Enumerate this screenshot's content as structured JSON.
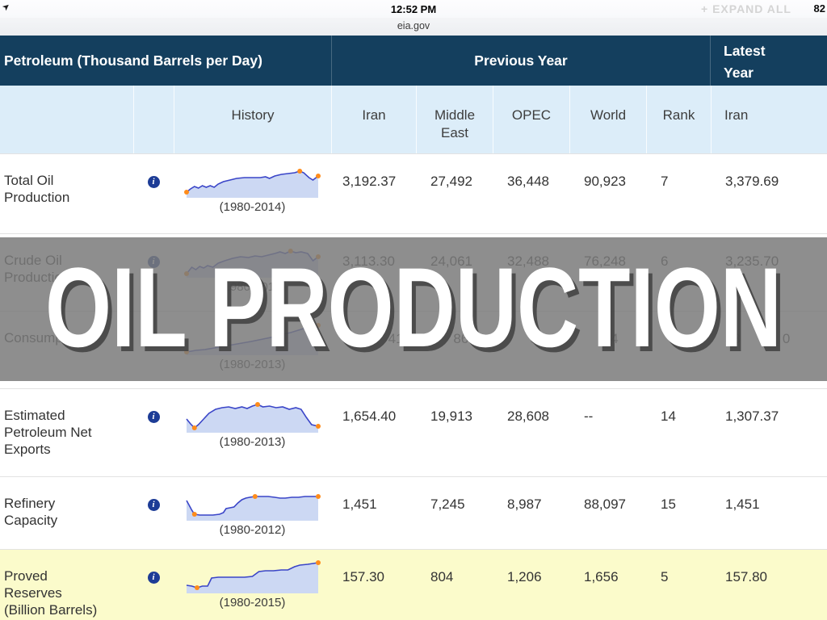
{
  "status_bar": {
    "time": "12:52 PM",
    "site": "eia.gov",
    "battery": "82",
    "expand_all_label": "+ EXPAND ALL"
  },
  "overlay": {
    "title": "OIL PRODUCTION"
  },
  "icons": {
    "info_glyph": "i",
    "signal_glyph": "➤"
  },
  "colors": {
    "header_navy": "#143F5E",
    "subheader_blue": "#DCEDF9",
    "highlight_yellow": "#FBFBCB",
    "spark_line": "#3A45C8",
    "spark_fill": "#CCD8F3",
    "spark_marker": "#FF8C1A",
    "info_icon_blue": "#1D3C96",
    "overlay_gray": "rgba(122,122,122,0.85)"
  },
  "table": {
    "group_headers": {
      "left": "Petroleum (Thousand Barrels per Day)",
      "middle": "Previous Year",
      "right": "Latest\nYear"
    },
    "columns": {
      "history": "History",
      "iran": "Iran",
      "middle_east": "Middle\nEast",
      "opec": "OPEC",
      "world": "World",
      "rank": "Rank",
      "latest_iran": "Iran"
    },
    "rows": [
      {
        "label": "Total Oil\nProduction",
        "caption": "(1980-2014)",
        "iran": "3,192.37",
        "middle_east": "27,492",
        "opec": "36,448",
        "world": "90,923",
        "rank": "7",
        "latest": "3,379.69",
        "spark": {
          "points": [
            [
              0,
              33
            ],
            [
              3,
              29
            ],
            [
              6,
              26
            ],
            [
              9,
              28
            ],
            [
              12,
              25
            ],
            [
              15,
              27
            ],
            [
              18,
              25
            ],
            [
              21,
              27
            ],
            [
              24,
              23
            ],
            [
              28,
              20
            ],
            [
              33,
              18
            ],
            [
              38,
              16
            ],
            [
              44,
              15
            ],
            [
              50,
              15
            ],
            [
              56,
              15
            ],
            [
              60,
              14
            ],
            [
              63,
              16
            ],
            [
              67,
              13
            ],
            [
              72,
              11
            ],
            [
              77,
              10
            ],
            [
              82,
              9
            ],
            [
              86,
              7
            ],
            [
              89,
              9
            ],
            [
              93,
              15
            ],
            [
              96,
              18
            ],
            [
              100,
              13
            ]
          ],
          "markers": [
            0,
            21,
            25
          ]
        }
      },
      {
        "label": "Crude Oil\nProduction",
        "caption": "(1980-2014)",
        "iran": "3,113.30",
        "middle_east": "24,061",
        "opec": "32,488",
        "world": "76,248",
        "rank": "6",
        "latest": "3,235.70",
        "spark": {
          "points": [
            [
              0,
              35
            ],
            [
              4,
              27
            ],
            [
              7,
              30
            ],
            [
              10,
              26
            ],
            [
              13,
              28
            ],
            [
              16,
              25
            ],
            [
              20,
              27
            ],
            [
              24,
              22
            ],
            [
              29,
              19
            ],
            [
              35,
              16
            ],
            [
              41,
              14
            ],
            [
              47,
              15
            ],
            [
              52,
              13
            ],
            [
              57,
              14
            ],
            [
              62,
              12
            ],
            [
              67,
              10
            ],
            [
              71,
              8
            ],
            [
              75,
              10
            ],
            [
              79,
              7
            ],
            [
              83,
              9
            ],
            [
              87,
              8
            ],
            [
              92,
              10
            ],
            [
              96,
              19
            ],
            [
              100,
              14
            ]
          ],
          "markers": [
            0,
            18,
            23
          ]
        }
      },
      {
        "label": "Consumption",
        "caption": "(1980-2013)",
        "iran": "            41",
        "middle_east": "      86",
        "opec": "      82",
        "world": "     34",
        "rank": "",
        "latest": "38           0",
        "spark": {
          "points": [
            [
              0,
              36
            ],
            [
              7,
              34
            ],
            [
              14,
              33
            ],
            [
              21,
              31
            ],
            [
              28,
              29
            ],
            [
              35,
              27
            ],
            [
              42,
              25
            ],
            [
              49,
              23
            ],
            [
              55,
              21
            ],
            [
              61,
              19
            ],
            [
              67,
              17
            ],
            [
              73,
              14
            ],
            [
              79,
              12
            ],
            [
              85,
              9
            ],
            [
              91,
              6
            ],
            [
              100,
              3
            ]
          ],
          "markers": [
            0,
            15
          ]
        }
      },
      {
        "label": "Estimated\nPetroleum Net\nExports",
        "caption": "(1980-2013)",
        "iran": "1,654.40",
        "middle_east": "19,913",
        "opec": "28,608",
        "world": "--",
        "rank": "14",
        "latest": "1,307.37",
        "spark": {
          "points": [
            [
              0,
              23
            ],
            [
              3,
              29
            ],
            [
              6,
              34
            ],
            [
              9,
              30
            ],
            [
              13,
              23
            ],
            [
              17,
              16
            ],
            [
              22,
              11
            ],
            [
              27,
              9
            ],
            [
              32,
              8
            ],
            [
              37,
              10
            ],
            [
              42,
              8
            ],
            [
              46,
              10
            ],
            [
              50,
              7
            ],
            [
              54,
              5
            ],
            [
              58,
              8
            ],
            [
              63,
              7
            ],
            [
              68,
              9
            ],
            [
              73,
              8
            ],
            [
              78,
              11
            ],
            [
              83,
              9
            ],
            [
              87,
              11
            ],
            [
              91,
              21
            ],
            [
              95,
              30
            ],
            [
              100,
              32
            ]
          ],
          "markers": [
            2,
            13,
            23
          ]
        }
      },
      {
        "label": "Refinery\nCapacity",
        "caption": "(1980-2012)",
        "iran": "1,451",
        "middle_east": "7,245",
        "opec": "8,987",
        "world": "88,097",
        "rank": "15",
        "latest": "1,451",
        "spark": {
          "points": [
            [
              0,
              15
            ],
            [
              2,
              21
            ],
            [
              4,
              27
            ],
            [
              6,
              32
            ],
            [
              10,
              33
            ],
            [
              15,
              33
            ],
            [
              20,
              33
            ],
            [
              25,
              32
            ],
            [
              28,
              30
            ],
            [
              30,
              25
            ],
            [
              33,
              24
            ],
            [
              36,
              23
            ],
            [
              39,
              18
            ],
            [
              42,
              14
            ],
            [
              45,
              12
            ],
            [
              48,
              11
            ],
            [
              52,
              10
            ],
            [
              57,
              10
            ],
            [
              62,
              10
            ],
            [
              67,
              11
            ],
            [
              71,
              12
            ],
            [
              75,
              12
            ],
            [
              80,
              11
            ],
            [
              85,
              11
            ],
            [
              90,
              10
            ],
            [
              95,
              10
            ],
            [
              100,
              10
            ]
          ],
          "markers": [
            3,
            16,
            26
          ]
        }
      },
      {
        "label": "Proved\nReserves\n(Billion Barrels)",
        "caption": "(1980-2015)",
        "iran": "157.30",
        "middle_east": "804",
        "opec": "1,206",
        "world": "1,656",
        "rank": "5",
        "latest": "157.80",
        "spark": {
          "points": [
            [
              0,
              30
            ],
            [
              4,
              31
            ],
            [
              8,
              33
            ],
            [
              12,
              31
            ],
            [
              16,
              31
            ],
            [
              19,
              21
            ],
            [
              24,
              20
            ],
            [
              30,
              20
            ],
            [
              37,
              20
            ],
            [
              44,
              20
            ],
            [
              50,
              19
            ],
            [
              55,
              13
            ],
            [
              60,
              12
            ],
            [
              66,
              12
            ],
            [
              72,
              11
            ],
            [
              77,
              11
            ],
            [
              82,
              7
            ],
            [
              86,
              5
            ],
            [
              92,
              4
            ],
            [
              100,
              2
            ]
          ],
          "markers": [
            2,
            19
          ]
        }
      }
    ]
  }
}
